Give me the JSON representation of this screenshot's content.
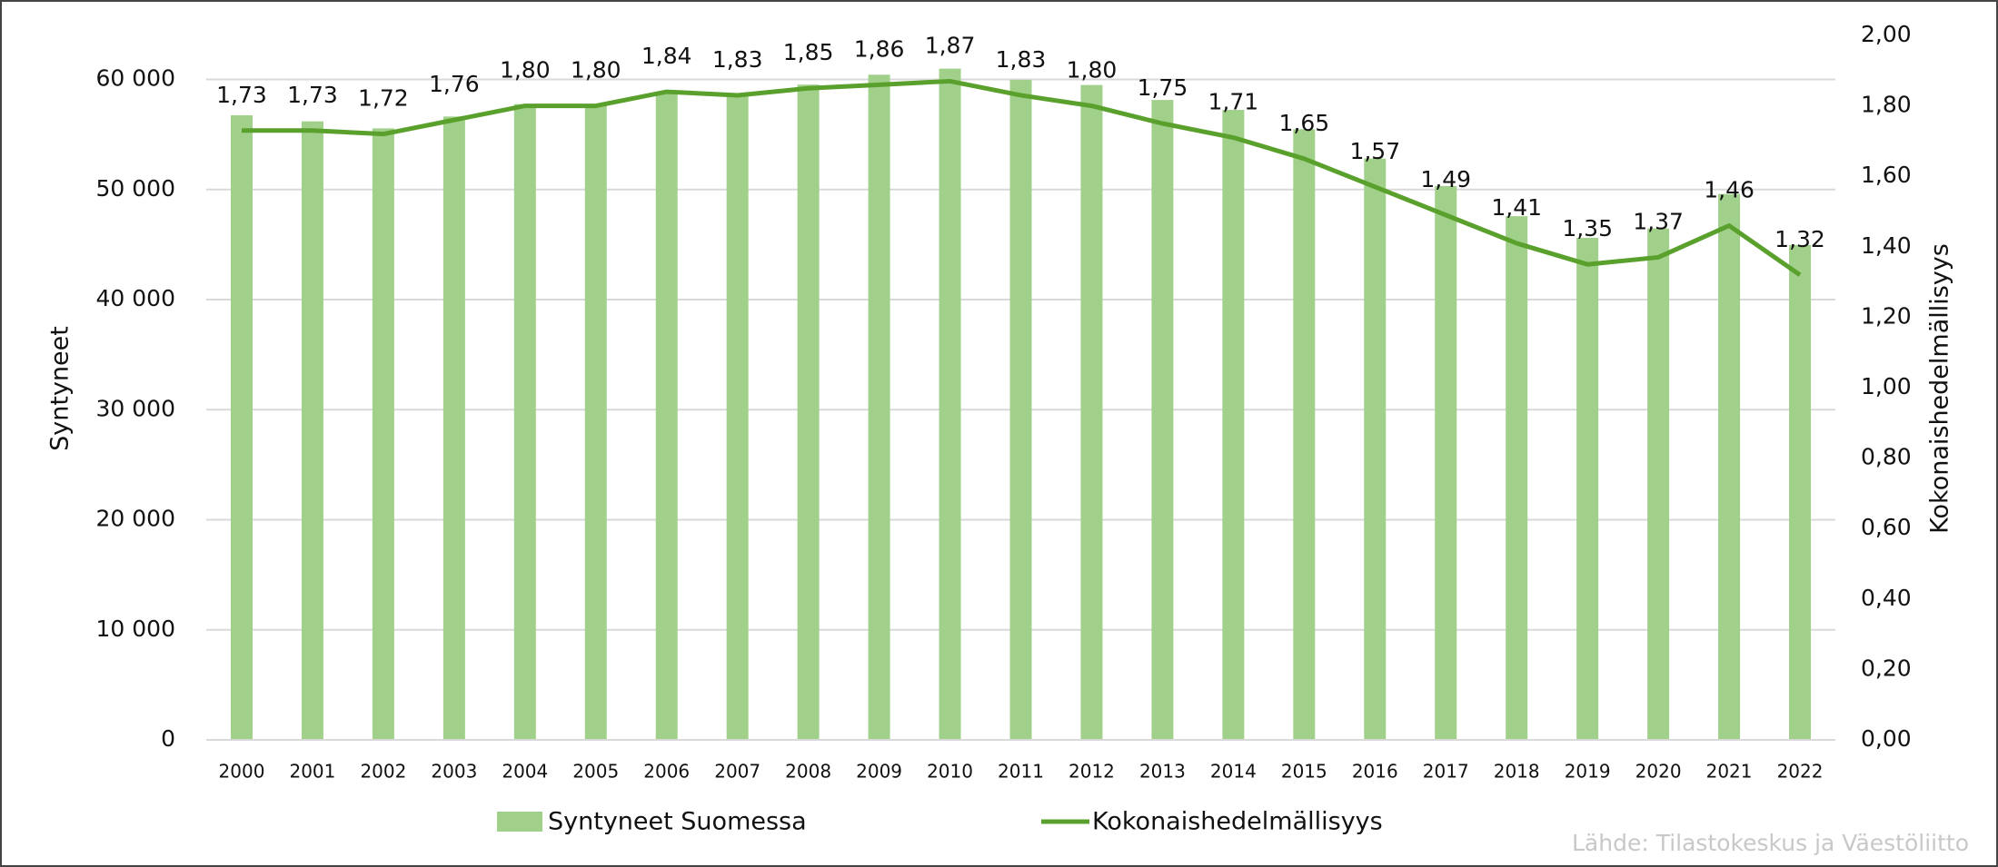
{
  "chart_data": {
    "type": "bar_line",
    "categories": [
      "2000",
      "2001",
      "2002",
      "2003",
      "2004",
      "2005",
      "2006",
      "2007",
      "2008",
      "2009",
      "2010",
      "2011",
      "2012",
      "2013",
      "2014",
      "2015",
      "2016",
      "2017",
      "2018",
      "2019",
      "2020",
      "2021",
      "2022"
    ],
    "series": [
      {
        "name": "Syntyneet Suomessa",
        "type": "bar",
        "color": "#a1d08a",
        "values": [
          56742,
          56189,
          55555,
          56630,
          57758,
          57745,
          58840,
          58729,
          59530,
          60430,
          60980,
          59961,
          59493,
          58134,
          57232,
          55472,
          52814,
          50321,
          47577,
          45613,
          46463,
          49594,
          44951
        ]
      },
      {
        "name": "Kokonaishedelmällisyys",
        "type": "line",
        "axis": "y2",
        "color": "#5aa02c",
        "values": [
          1.73,
          1.73,
          1.72,
          1.76,
          1.8,
          1.8,
          1.84,
          1.83,
          1.85,
          1.86,
          1.87,
          1.83,
          1.8,
          1.75,
          1.71,
          1.65,
          1.57,
          1.49,
          1.41,
          1.35,
          1.37,
          1.46,
          1.32
        ],
        "value_labels": [
          "1,73",
          "1,73",
          "1,72",
          "1,76",
          "1,80",
          "1,80",
          "1,84",
          "1,83",
          "1,85",
          "1,86",
          "1,87",
          "1,83",
          "1,80",
          "1,75",
          "1,71",
          "1,65",
          "1,57",
          "1,49",
          "1,41",
          "1,35",
          "1,37",
          "1,46",
          "1,32"
        ]
      }
    ],
    "y_label": "Syntyneet",
    "y2_label": "Kokonaishedelmällisyys",
    "ylim": [
      0,
      64000
    ],
    "yticks": [
      0,
      {
        "value": 10000,
        "label": "10 000"
      },
      {
        "value": 20000,
        "label": "20 000"
      },
      {
        "value": 30000,
        "label": "30 000"
      },
      {
        "value": 40000,
        "label": "40 000"
      },
      {
        "value": 50000,
        "label": "50 000"
      },
      {
        "value": 60000,
        "label": "60 000"
      }
    ],
    "y2lim": [
      0,
      2
    ],
    "y2ticks": [
      {
        "value": 0,
        "label": "0,00"
      },
      {
        "value": 0.2,
        "label": "0,20"
      },
      {
        "value": 0.4,
        "label": "0,40"
      },
      {
        "value": 0.6,
        "label": "0,60"
      },
      {
        "value": 0.8,
        "label": "0,80"
      },
      {
        "value": 1,
        "label": "1,00"
      },
      {
        "value": 1.2,
        "label": "1,20"
      },
      {
        "value": 1.4,
        "label": "1,40"
      },
      {
        "value": 1.6,
        "label": "1,60"
      },
      {
        "value": 1.8,
        "label": "1,80"
      },
      {
        "value": 2,
        "label": "2,00"
      }
    ],
    "grid": true,
    "source": "Lähde: Tilastokeskus ja Väestöliitto"
  }
}
